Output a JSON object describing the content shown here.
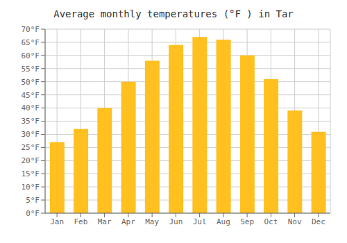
{
  "chart_data": {
    "type": "bar",
    "title": "Average monthly temperatures (°F ) in Tar",
    "categories": [
      "Jan",
      "Feb",
      "Mar",
      "Apr",
      "May",
      "Jun",
      "Jul",
      "Aug",
      "Sep",
      "Oct",
      "Nov",
      "Dec"
    ],
    "values": [
      27,
      32,
      40,
      50,
      58,
      64,
      67,
      66,
      60,
      51,
      39,
      31
    ],
    "color": "#FFC020",
    "ylim": [
      0,
      70
    ],
    "yticks": [
      {
        "value": 0,
        "label": "0°F"
      },
      {
        "value": 5,
        "label": "5°F"
      },
      {
        "value": 10,
        "label": "10°F"
      },
      {
        "value": 15,
        "label": "15°F"
      },
      {
        "value": 20,
        "label": "20°F"
      },
      {
        "value": 25,
        "label": "25°F"
      },
      {
        "value": 30,
        "label": "30°F"
      },
      {
        "value": 35,
        "label": "35°F"
      },
      {
        "value": 40,
        "label": "40°F"
      },
      {
        "value": 45,
        "label": "45°F"
      },
      {
        "value": 50,
        "label": "50°F"
      },
      {
        "value": 55,
        "label": "55°F"
      },
      {
        "value": 60,
        "label": "60°F"
      },
      {
        "value": 65,
        "label": "65°F"
      },
      {
        "value": 70,
        "label": "70°F"
      }
    ],
    "grid": true
  }
}
